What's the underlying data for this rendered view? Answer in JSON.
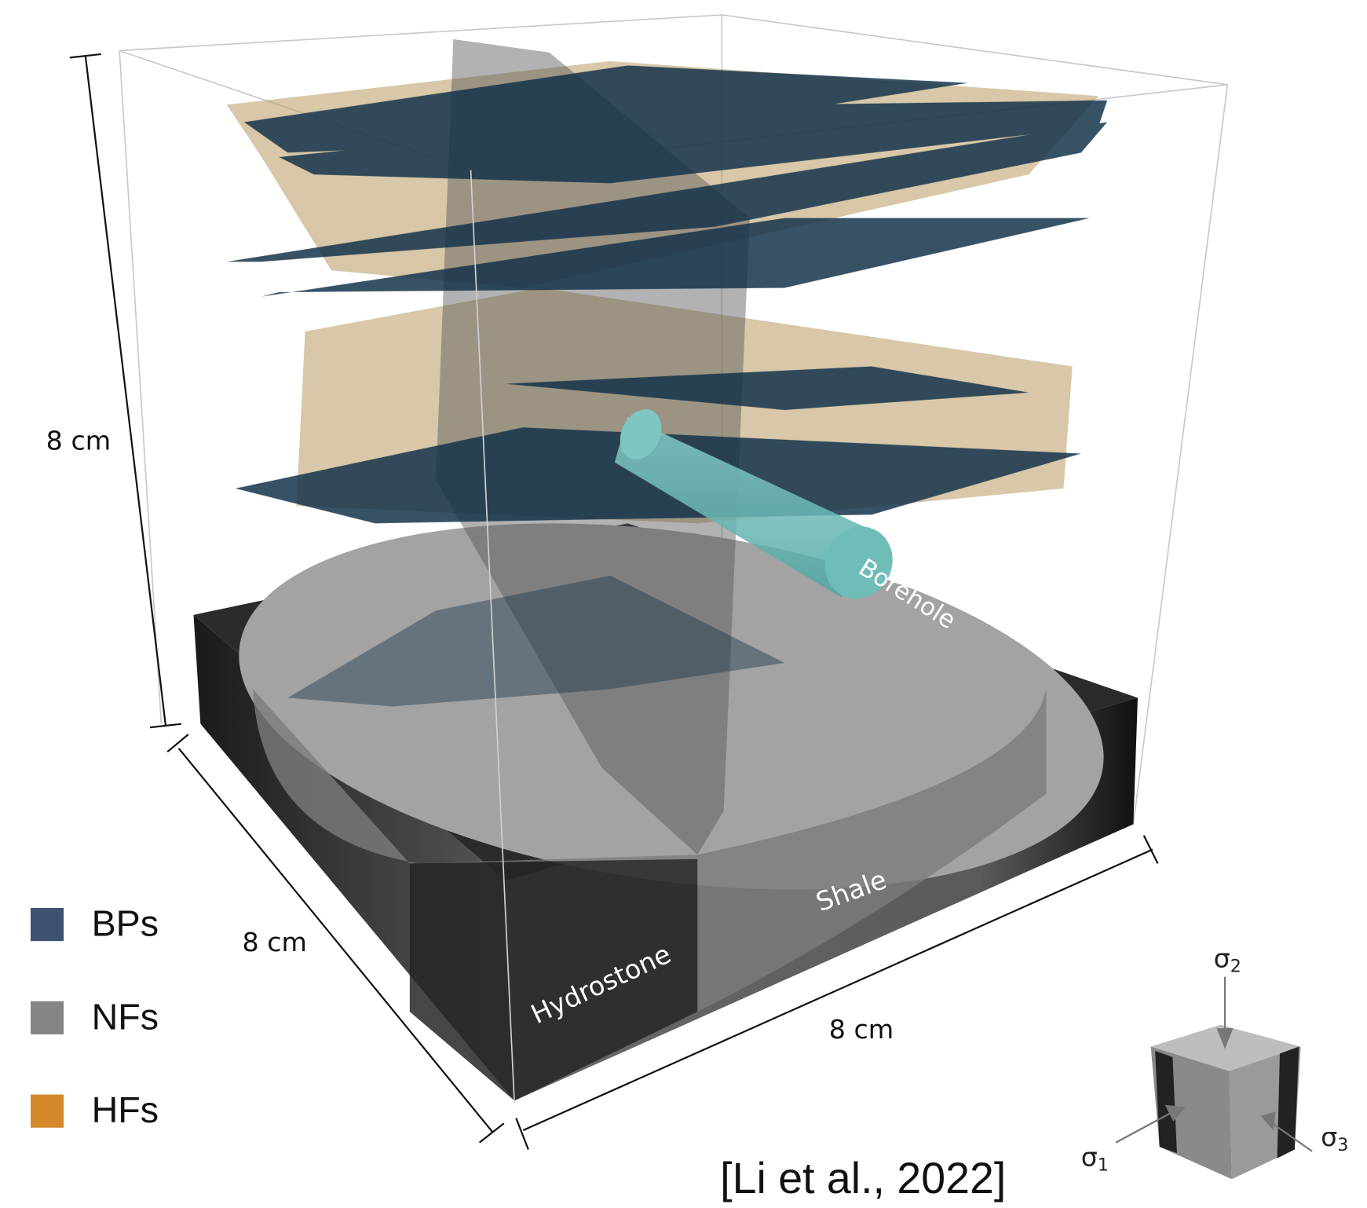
{
  "figure": {
    "dimensions": {
      "height": "8 cm",
      "depth": "8 cm",
      "width": "8 cm"
    },
    "labels": {
      "borehole": "Borehole",
      "shale": "Shale",
      "hydrostone": "Hydrostone"
    },
    "legend": [
      {
        "name": "BPs",
        "color": "#3d5170"
      },
      {
        "name": "NFs",
        "color": "#858585"
      },
      {
        "name": "HFs",
        "color": "#d4892a"
      }
    ],
    "citation": "[Li et al., 2022]",
    "stresses": [
      {
        "symbol": "σ",
        "subscript": "1"
      },
      {
        "symbol": "σ",
        "subscript": "2"
      },
      {
        "symbol": "σ",
        "subscript": "3"
      }
    ]
  }
}
